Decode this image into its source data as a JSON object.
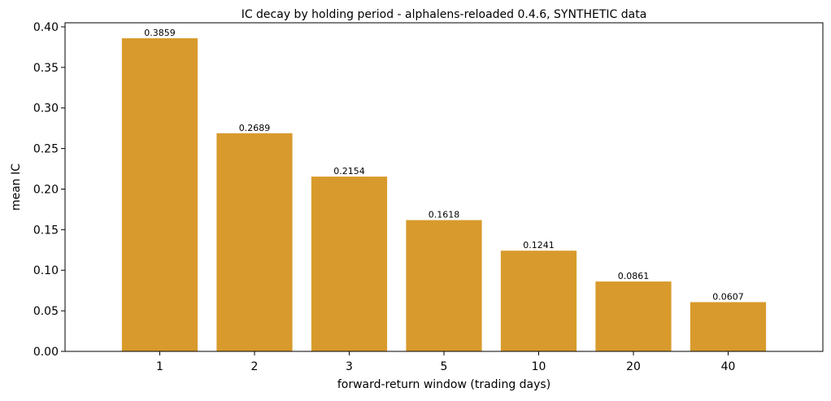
{
  "chart_data": {
    "type": "bar",
    "title": "IC decay by holding period - alphalens-reloaded 0.4.6, SYNTHETIC data",
    "xlabel": "forward-return window (trading days)",
    "ylabel": "mean IC",
    "categories": [
      "1",
      "2",
      "3",
      "5",
      "10",
      "20",
      "40"
    ],
    "values": [
      0.3859,
      0.2689,
      0.2154,
      0.1618,
      0.1241,
      0.0861,
      0.0607
    ],
    "value_labels": [
      "0.3859",
      "0.2689",
      "0.2154",
      "0.1618",
      "0.1241",
      "0.0861",
      "0.0607"
    ],
    "ylim": [
      0,
      0.405
    ],
    "yticks": [
      0.0,
      0.05,
      0.1,
      0.15,
      0.2,
      0.25,
      0.3,
      0.35,
      0.4
    ],
    "ytick_labels": [
      "0.00",
      "0.05",
      "0.10",
      "0.15",
      "0.20",
      "0.25",
      "0.30",
      "0.35",
      "0.40"
    ],
    "grid": false,
    "bar_color": "#d89a2c"
  }
}
